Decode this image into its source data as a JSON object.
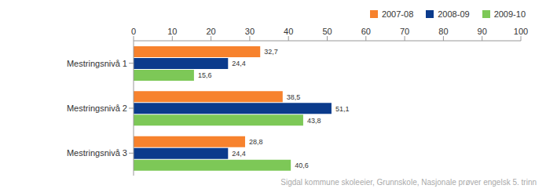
{
  "chart_data": {
    "type": "bar",
    "orientation": "horizontal",
    "categories": [
      "Mestringsnivå 1",
      "Mestringsnivå 2",
      "Mestringsnivå 3"
    ],
    "series": [
      {
        "name": "2007-08",
        "color": "#f7822d",
        "values": [
          32.7,
          38.5,
          28.8
        ],
        "value_labels": [
          "32,7",
          "38,5",
          "28,8"
        ]
      },
      {
        "name": "2008-09",
        "color": "#0b3b8c",
        "values": [
          24.4,
          51.1,
          24.4
        ],
        "value_labels": [
          "24,4",
          "51,1",
          "24,4"
        ]
      },
      {
        "name": "2009-10",
        "color": "#7dc857",
        "values": [
          15.6,
          43.8,
          40.6
        ],
        "value_labels": [
          "15,6",
          "43,8",
          "40,6"
        ]
      }
    ],
    "xlim": [
      0,
      100
    ],
    "xticks": [
      0,
      10,
      20,
      30,
      40,
      50,
      60,
      70,
      80,
      90,
      100
    ],
    "grid": false,
    "legend": "top-right",
    "data_labels": true,
    "annotation": "Sigdal kommune skoleeier, Grunnskole, Nasjonale prøver engelsk 5. trinn"
  }
}
